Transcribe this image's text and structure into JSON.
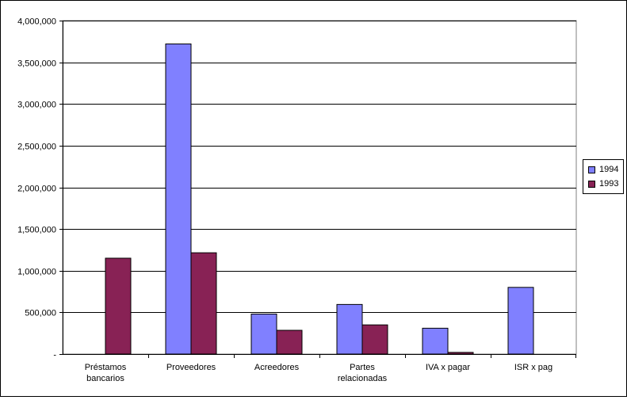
{
  "chart_data": {
    "type": "bar",
    "title": "",
    "xlabel": "",
    "ylabel": "",
    "ylim": [
      0,
      4000000
    ],
    "yticks": [
      0,
      500000,
      1000000,
      1500000,
      2000000,
      2500000,
      3000000,
      3500000,
      4000000
    ],
    "ytick_labels": [
      "-",
      "500,000",
      "1,000,000",
      "1,500,000",
      "2,000,000",
      "2,500,000",
      "3,000,000",
      "3,500,000",
      "4,000,000"
    ],
    "grid": true,
    "legend_position": "right",
    "categories": [
      [
        "Préstamos",
        "bancarios"
      ],
      [
        "Proveedores"
      ],
      [
        "Acreedores"
      ],
      [
        "Partes",
        "relacionadas"
      ],
      [
        "IVA x pagar"
      ],
      [
        "ISR x pag"
      ]
    ],
    "series": [
      {
        "name": "1994",
        "color": "#8080FF",
        "values": [
          0,
          3720000,
          480000,
          595000,
          310000,
          800000
        ]
      },
      {
        "name": "1993",
        "color": "#882255",
        "values": [
          1150000,
          1215000,
          285000,
          350000,
          20000,
          0
        ]
      }
    ]
  }
}
